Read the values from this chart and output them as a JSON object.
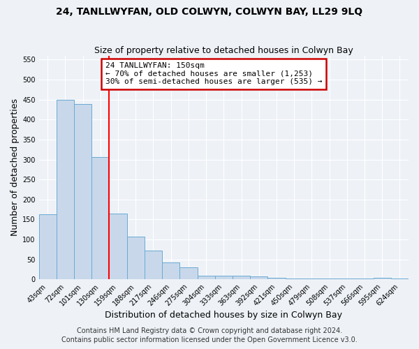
{
  "title": "24, TANLLWYFAN, OLD COLWYN, COLWYN BAY, LL29 9LQ",
  "subtitle": "Size of property relative to detached houses in Colwyn Bay",
  "xlabel": "Distribution of detached houses by size in Colwyn Bay",
  "ylabel": "Number of detached properties",
  "categories": [
    "43sqm",
    "72sqm",
    "101sqm",
    "130sqm",
    "159sqm",
    "188sqm",
    "217sqm",
    "246sqm",
    "275sqm",
    "304sqm",
    "333sqm",
    "363sqm",
    "392sqm",
    "421sqm",
    "450sqm",
    "479sqm",
    "508sqm",
    "537sqm",
    "566sqm",
    "595sqm",
    "624sqm"
  ],
  "values": [
    163,
    450,
    438,
    307,
    165,
    107,
    73,
    43,
    31,
    10,
    10,
    10,
    8,
    4,
    3,
    2,
    2,
    2,
    2,
    4,
    3
  ],
  "bar_color": "#c8d8ea",
  "bar_edge_color": "#6aaad4",
  "red_line_index": 3.5,
  "annotation_text": "24 TANLLWYFAN: 150sqm\n← 70% of detached houses are smaller (1,253)\n30% of semi-detached houses are larger (535) →",
  "annotation_box_facecolor": "#ffffff",
  "annotation_box_edgecolor": "#cc0000",
  "ylim": [
    0,
    560
  ],
  "yticks": [
    0,
    50,
    100,
    150,
    200,
    250,
    300,
    350,
    400,
    450,
    500,
    550
  ],
  "footer1": "Contains HM Land Registry data © Crown copyright and database right 2024.",
  "footer2": "Contains public sector information licensed under the Open Government Licence v3.0.",
  "bg_color": "#eef2f7",
  "grid_color": "#ffffff",
  "title_fontsize": 10,
  "subtitle_fontsize": 9,
  "axis_label_fontsize": 9,
  "tick_fontsize": 7,
  "footer_fontsize": 7,
  "annotation_fontsize": 8
}
